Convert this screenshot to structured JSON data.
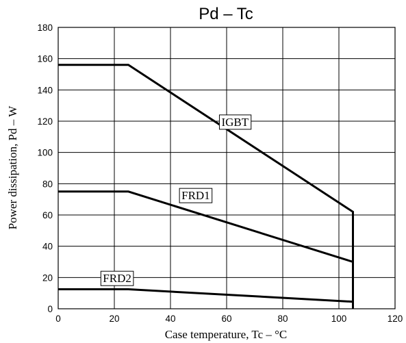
{
  "chart_data": {
    "type": "line",
    "title": "Pd  –  Tc",
    "xlabel": "Case temperature, Tc  –  °C",
    "ylabel": "Power dissipation, Pd  –  W",
    "xlim": [
      0,
      120
    ],
    "ylim": [
      0,
      180
    ],
    "x_ticks": [
      0,
      20,
      40,
      60,
      80,
      100,
      120
    ],
    "y_ticks": [
      0,
      20,
      40,
      60,
      80,
      100,
      120,
      140,
      160,
      180
    ],
    "grid": true,
    "legend": "none",
    "series": [
      {
        "name": "IGBT",
        "x": [
          0,
          25,
          105,
          105
        ],
        "y": [
          156,
          156,
          62,
          0
        ],
        "label_at": [
          63,
          117
        ]
      },
      {
        "name": "FRD1",
        "x": [
          0,
          25,
          105,
          105
        ],
        "y": [
          75,
          75,
          30,
          0
        ],
        "label_at": [
          49,
          70
        ]
      },
      {
        "name": "FRD2",
        "x": [
          0,
          25,
          105,
          105
        ],
        "y": [
          12.5,
          12.5,
          4.5,
          0
        ],
        "label_at": [
          21,
          17
        ]
      }
    ]
  }
}
